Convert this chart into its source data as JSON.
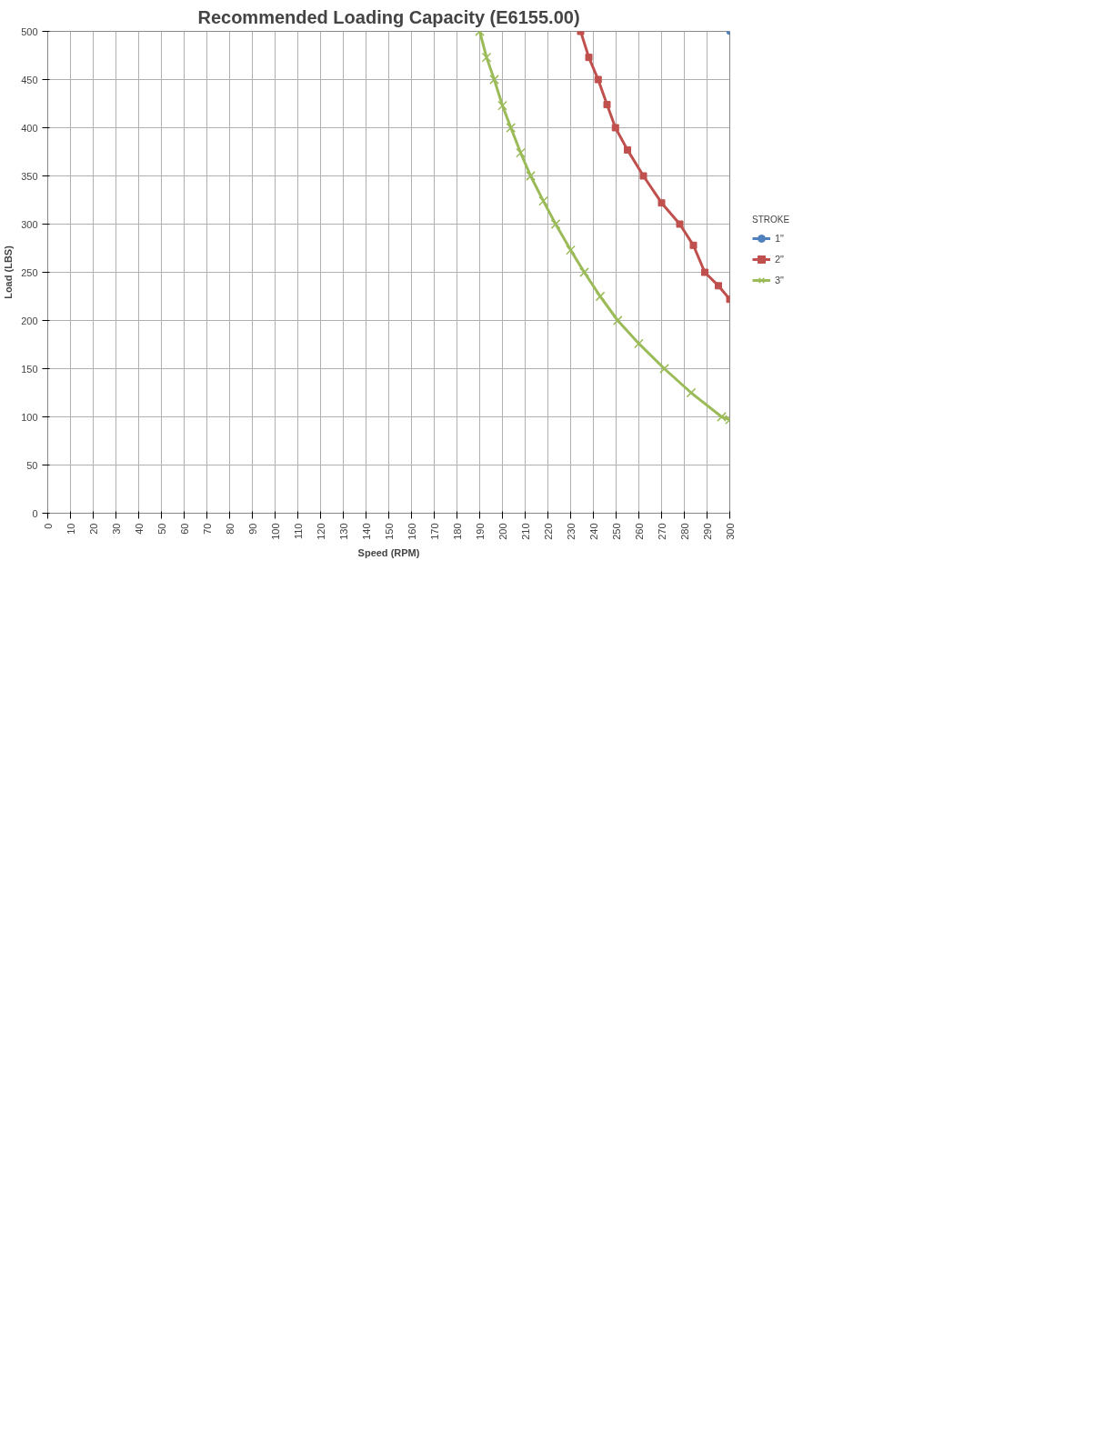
{
  "chart_data": {
    "type": "line",
    "title": "Recommended Loading Capacity (E6155.00)",
    "xlabel": "Speed (RPM)",
    "ylabel": "Load (LBS)",
    "legend_title": "STROKE",
    "legend": "right",
    "grid": true,
    "xlim": [
      0,
      300
    ],
    "xticks": [
      0,
      10,
      20,
      30,
      40,
      50,
      60,
      70,
      80,
      90,
      100,
      110,
      120,
      130,
      140,
      150,
      160,
      170,
      180,
      190,
      200,
      210,
      220,
      230,
      240,
      250,
      260,
      270,
      280,
      290,
      300
    ],
    "ylim": [
      0,
      500
    ],
    "yticks": [
      0,
      50,
      100,
      150,
      200,
      250,
      300,
      350,
      400,
      450,
      500
    ],
    "series": [
      {
        "name": "1\"",
        "color": "#4f81bd",
        "marker": "circle",
        "x": [
          300
        ],
        "values": [
          500
        ]
      },
      {
        "name": "2\"",
        "color": "#c0504d",
        "marker": "square",
        "x": [
          234.4,
          238,
          242.1,
          246,
          249.7,
          255,
          262,
          270,
          278,
          284,
          289,
          295,
          300
        ],
        "values": [
          500,
          473,
          450,
          424,
          400,
          377,
          350,
          322,
          300,
          278,
          250,
          236,
          222
        ]
      },
      {
        "name": "3\"",
        "color": "#9bbb59",
        "marker": "cross",
        "x": [
          190,
          193,
          196.4,
          200,
          203.7,
          208,
          212.4,
          218,
          223.4,
          230,
          236,
          243,
          250.7,
          260,
          271.2,
          283,
          296.4,
          300
        ],
        "values": [
          500,
          473,
          450,
          423,
          400,
          374,
          350,
          324,
          300,
          273,
          250,
          225,
          200,
          176,
          150,
          125,
          100,
          97
        ]
      }
    ]
  }
}
